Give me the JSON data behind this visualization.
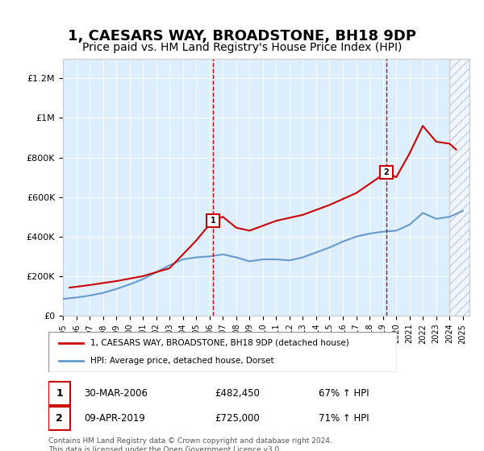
{
  "title": "1, CAESARS WAY, BROADSTONE, BH18 9DP",
  "subtitle": "Price paid vs. HM Land Registry's House Price Index (HPI)",
  "footer": "Contains HM Land Registry data © Crown copyright and database right 2024.\nThis data is licensed under the Open Government Licence v3.0.",
  "legend_line1": "1, CAESARS WAY, BROADSTONE, BH18 9DP (detached house)",
  "legend_line2": "HPI: Average price, detached house, Dorset",
  "sale1_label": "1",
  "sale1_date": "30-MAR-2006",
  "sale1_price": "£482,450",
  "sale1_hpi": "67% ↑ HPI",
  "sale1_year": 2006.25,
  "sale1_value": 482450,
  "sale2_label": "2",
  "sale2_date": "09-APR-2019",
  "sale2_price": "£725,000",
  "sale2_hpi": "71% ↑ HPI",
  "sale2_year": 2019.27,
  "sale2_value": 725000,
  "ylim": [
    0,
    1300000
  ],
  "xlim": [
    1995,
    2025.5
  ],
  "bg_color": "#ddeeff",
  "hatch_start": 2024.0,
  "red_line_color": "#cc0000",
  "blue_line_color": "#6699cc",
  "title_fontsize": 13,
  "subtitle_fontsize": 10,
  "hpi_years": [
    1995,
    1996,
    1997,
    1998,
    1999,
    2000,
    2001,
    2002,
    2003,
    2004,
    2005,
    2006,
    2007,
    2008,
    2009,
    2010,
    2011,
    2012,
    2013,
    2014,
    2015,
    2016,
    2017,
    2018,
    2019,
    2020,
    2021,
    2022,
    2023,
    2024,
    2025
  ],
  "hpi_values": [
    85000,
    92000,
    102000,
    115000,
    135000,
    158000,
    185000,
    220000,
    255000,
    285000,
    295000,
    300000,
    310000,
    295000,
    275000,
    285000,
    285000,
    280000,
    295000,
    320000,
    345000,
    375000,
    400000,
    415000,
    425000,
    430000,
    460000,
    520000,
    490000,
    500000,
    530000
  ],
  "sale_years": [
    1995.5,
    1997,
    1999,
    2001,
    2003,
    2005,
    2006.25,
    2007,
    2008,
    2009,
    2011,
    2013,
    2015,
    2017,
    2019.27,
    2020,
    2021,
    2022,
    2023,
    2024,
    2024.5
  ],
  "sale_values": [
    142000,
    155000,
    175000,
    200000,
    240000,
    380000,
    482450,
    500000,
    445000,
    430000,
    480000,
    510000,
    560000,
    620000,
    725000,
    700000,
    820000,
    960000,
    880000,
    870000,
    840000
  ]
}
